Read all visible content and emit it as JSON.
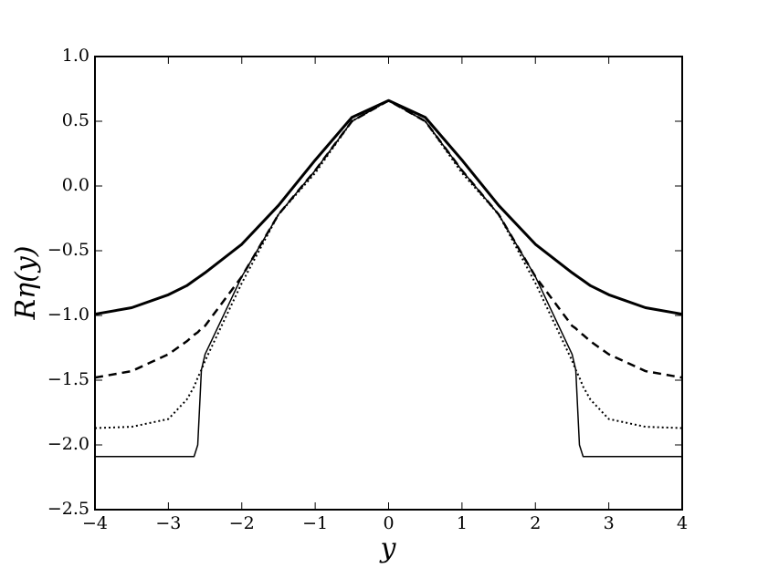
{
  "chart_data": {
    "type": "line",
    "xlabel": "y",
    "ylabel": "Rη(y)",
    "x": [
      -4,
      -3.5,
      -3,
      -2.75,
      -2.65,
      -2.6,
      -2.55,
      -2.5,
      -2,
      -1.5,
      -1,
      -0.5,
      0,
      0.5,
      1,
      1.5,
      2,
      2.5,
      2.55,
      2.6,
      2.65,
      2.75,
      3,
      3.5,
      4
    ],
    "series": [
      {
        "color": "#000000",
        "linewidth": 3,
        "dash": "none",
        "values": [
          -0.99,
          -0.94,
          -0.84,
          -0.77,
          -0.73,
          -0.71,
          -0.69,
          -0.67,
          -0.45,
          -0.15,
          0.2,
          0.53,
          0.66,
          0.53,
          0.2,
          -0.15,
          -0.45,
          -0.67,
          -0.69,
          -0.71,
          -0.73,
          -0.77,
          -0.84,
          -0.94,
          -0.99
        ]
      },
      {
        "color": "#000000",
        "linewidth": 2.5,
        "dash": "9,6",
        "values": [
          -1.48,
          -1.43,
          -1.3,
          -1.2,
          -1.15,
          -1.13,
          -1.1,
          -1.08,
          -0.7,
          -0.22,
          0.12,
          0.5,
          0.66,
          0.5,
          0.12,
          -0.22,
          -0.7,
          -1.08,
          -1.1,
          -1.13,
          -1.15,
          -1.2,
          -1.3,
          -1.43,
          -1.48
        ]
      },
      {
        "color": "#000000",
        "linewidth": 2,
        "dash": "2,3",
        "values": [
          -1.87,
          -1.86,
          -1.8,
          -1.65,
          -1.55,
          -1.48,
          -1.42,
          -1.35,
          -0.75,
          -0.22,
          0.1,
          0.5,
          0.66,
          0.5,
          0.1,
          -0.22,
          -0.75,
          -1.35,
          -1.42,
          -1.48,
          -1.55,
          -1.65,
          -1.8,
          -1.86,
          -1.87
        ]
      },
      {
        "color": "#000000",
        "linewidth": 1.5,
        "dash": "none",
        "values": [
          -2.09,
          -2.09,
          -2.09,
          -2.09,
          -2.09,
          -2.0,
          -1.42,
          -1.3,
          -0.7,
          -0.22,
          0.12,
          0.5,
          0.66,
          0.5,
          0.12,
          -0.22,
          -0.7,
          -1.3,
          -1.42,
          -2.0,
          -2.09,
          -2.09,
          -2.09,
          -2.09,
          -2.09
        ]
      }
    ],
    "xlim": [
      -4,
      4
    ],
    "xticks": [
      {
        "value": -4,
        "label": "−4"
      },
      {
        "value": -3,
        "label": "−3"
      },
      {
        "value": -2,
        "label": "−2"
      },
      {
        "value": -1,
        "label": "−1"
      },
      0,
      1,
      2,
      3,
      4
    ],
    "ylim": [
      -2.5,
      1.0
    ],
    "yticks": [
      {
        "value": -2.5,
        "label": "−2.5"
      },
      {
        "value": -2.0,
        "label": "−2.0"
      },
      {
        "value": -1.5,
        "label": "−1.5"
      },
      {
        "value": -1.0,
        "label": "−1.0"
      },
      {
        "value": -0.5,
        "label": "−0.5"
      },
      {
        "value": 0.0,
        "label": "0.0"
      },
      {
        "value": 0.5,
        "label": "0.5"
      },
      {
        "value": 1.0,
        "label": "1.0"
      }
    ],
    "grid": false
  }
}
